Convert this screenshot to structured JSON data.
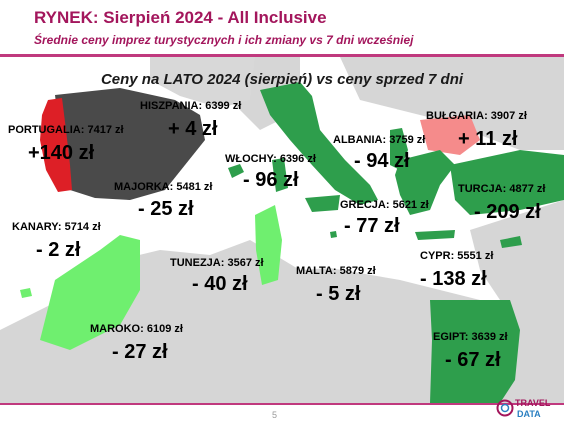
{
  "header": {
    "title": "RYNEK: Sierpień 2024 - All Inclusive",
    "subtitle": "Średnie ceny imprez turystycznych i ich zmiany vs 7 dni wcześniej"
  },
  "map": {
    "title": "Ceny na LATO 2024 (sierpień) vs ceny sprzed 7 dni",
    "colors": {
      "sea": "#ffffff",
      "land": "#d6d6d6",
      "strong_decrease": "#2e9e4c",
      "decrease": "#6fef6f",
      "increase": "#dd1f26",
      "small_increase": "#f58b8b",
      "neutral": "#4a4a4a"
    }
  },
  "destinations": [
    {
      "name": "PORTUGALIA",
      "price": "7417 zł",
      "change": "+140 zł"
    },
    {
      "name": "HISZPANIA",
      "price": "6399 zł",
      "change": "+ 4 zł"
    },
    {
      "name": "WŁOCHY",
      "price": "6396 zł",
      "change": "- 96 zł"
    },
    {
      "name": "MAJORKA",
      "price": "5481 zł",
      "change": "- 25 zł"
    },
    {
      "name": "KANARY",
      "price": "5714 zł",
      "change": "- 2 zł"
    },
    {
      "name": "MAROKO",
      "price": "6109 zł",
      "change": "- 27 zł"
    },
    {
      "name": "TUNEZJA",
      "price": "3567 zł",
      "change": "- 40 zł"
    },
    {
      "name": "MALTA",
      "price": "5879 zł",
      "change": "- 5 zł"
    },
    {
      "name": "ALBANIA",
      "price": "3759 zł",
      "change": "- 94 zł"
    },
    {
      "name": "BUŁGARIA",
      "price": "3907 zł",
      "change": "+ 11 zł"
    },
    {
      "name": "GRECJA",
      "price": "5621 zł",
      "change": "- 77 zł"
    },
    {
      "name": "TURCJA",
      "price": "4877 zł",
      "change": "- 209 zł"
    },
    {
      "name": "CYPR",
      "price": "5551 zł",
      "change": "- 138 zł"
    },
    {
      "name": "EGIPT",
      "price": "3639 zł",
      "change": "- 67 zł"
    }
  ],
  "footer": {
    "page_number": "5",
    "logo_text_1": "TRAVEL",
    "logo_text_2": "DATA"
  }
}
